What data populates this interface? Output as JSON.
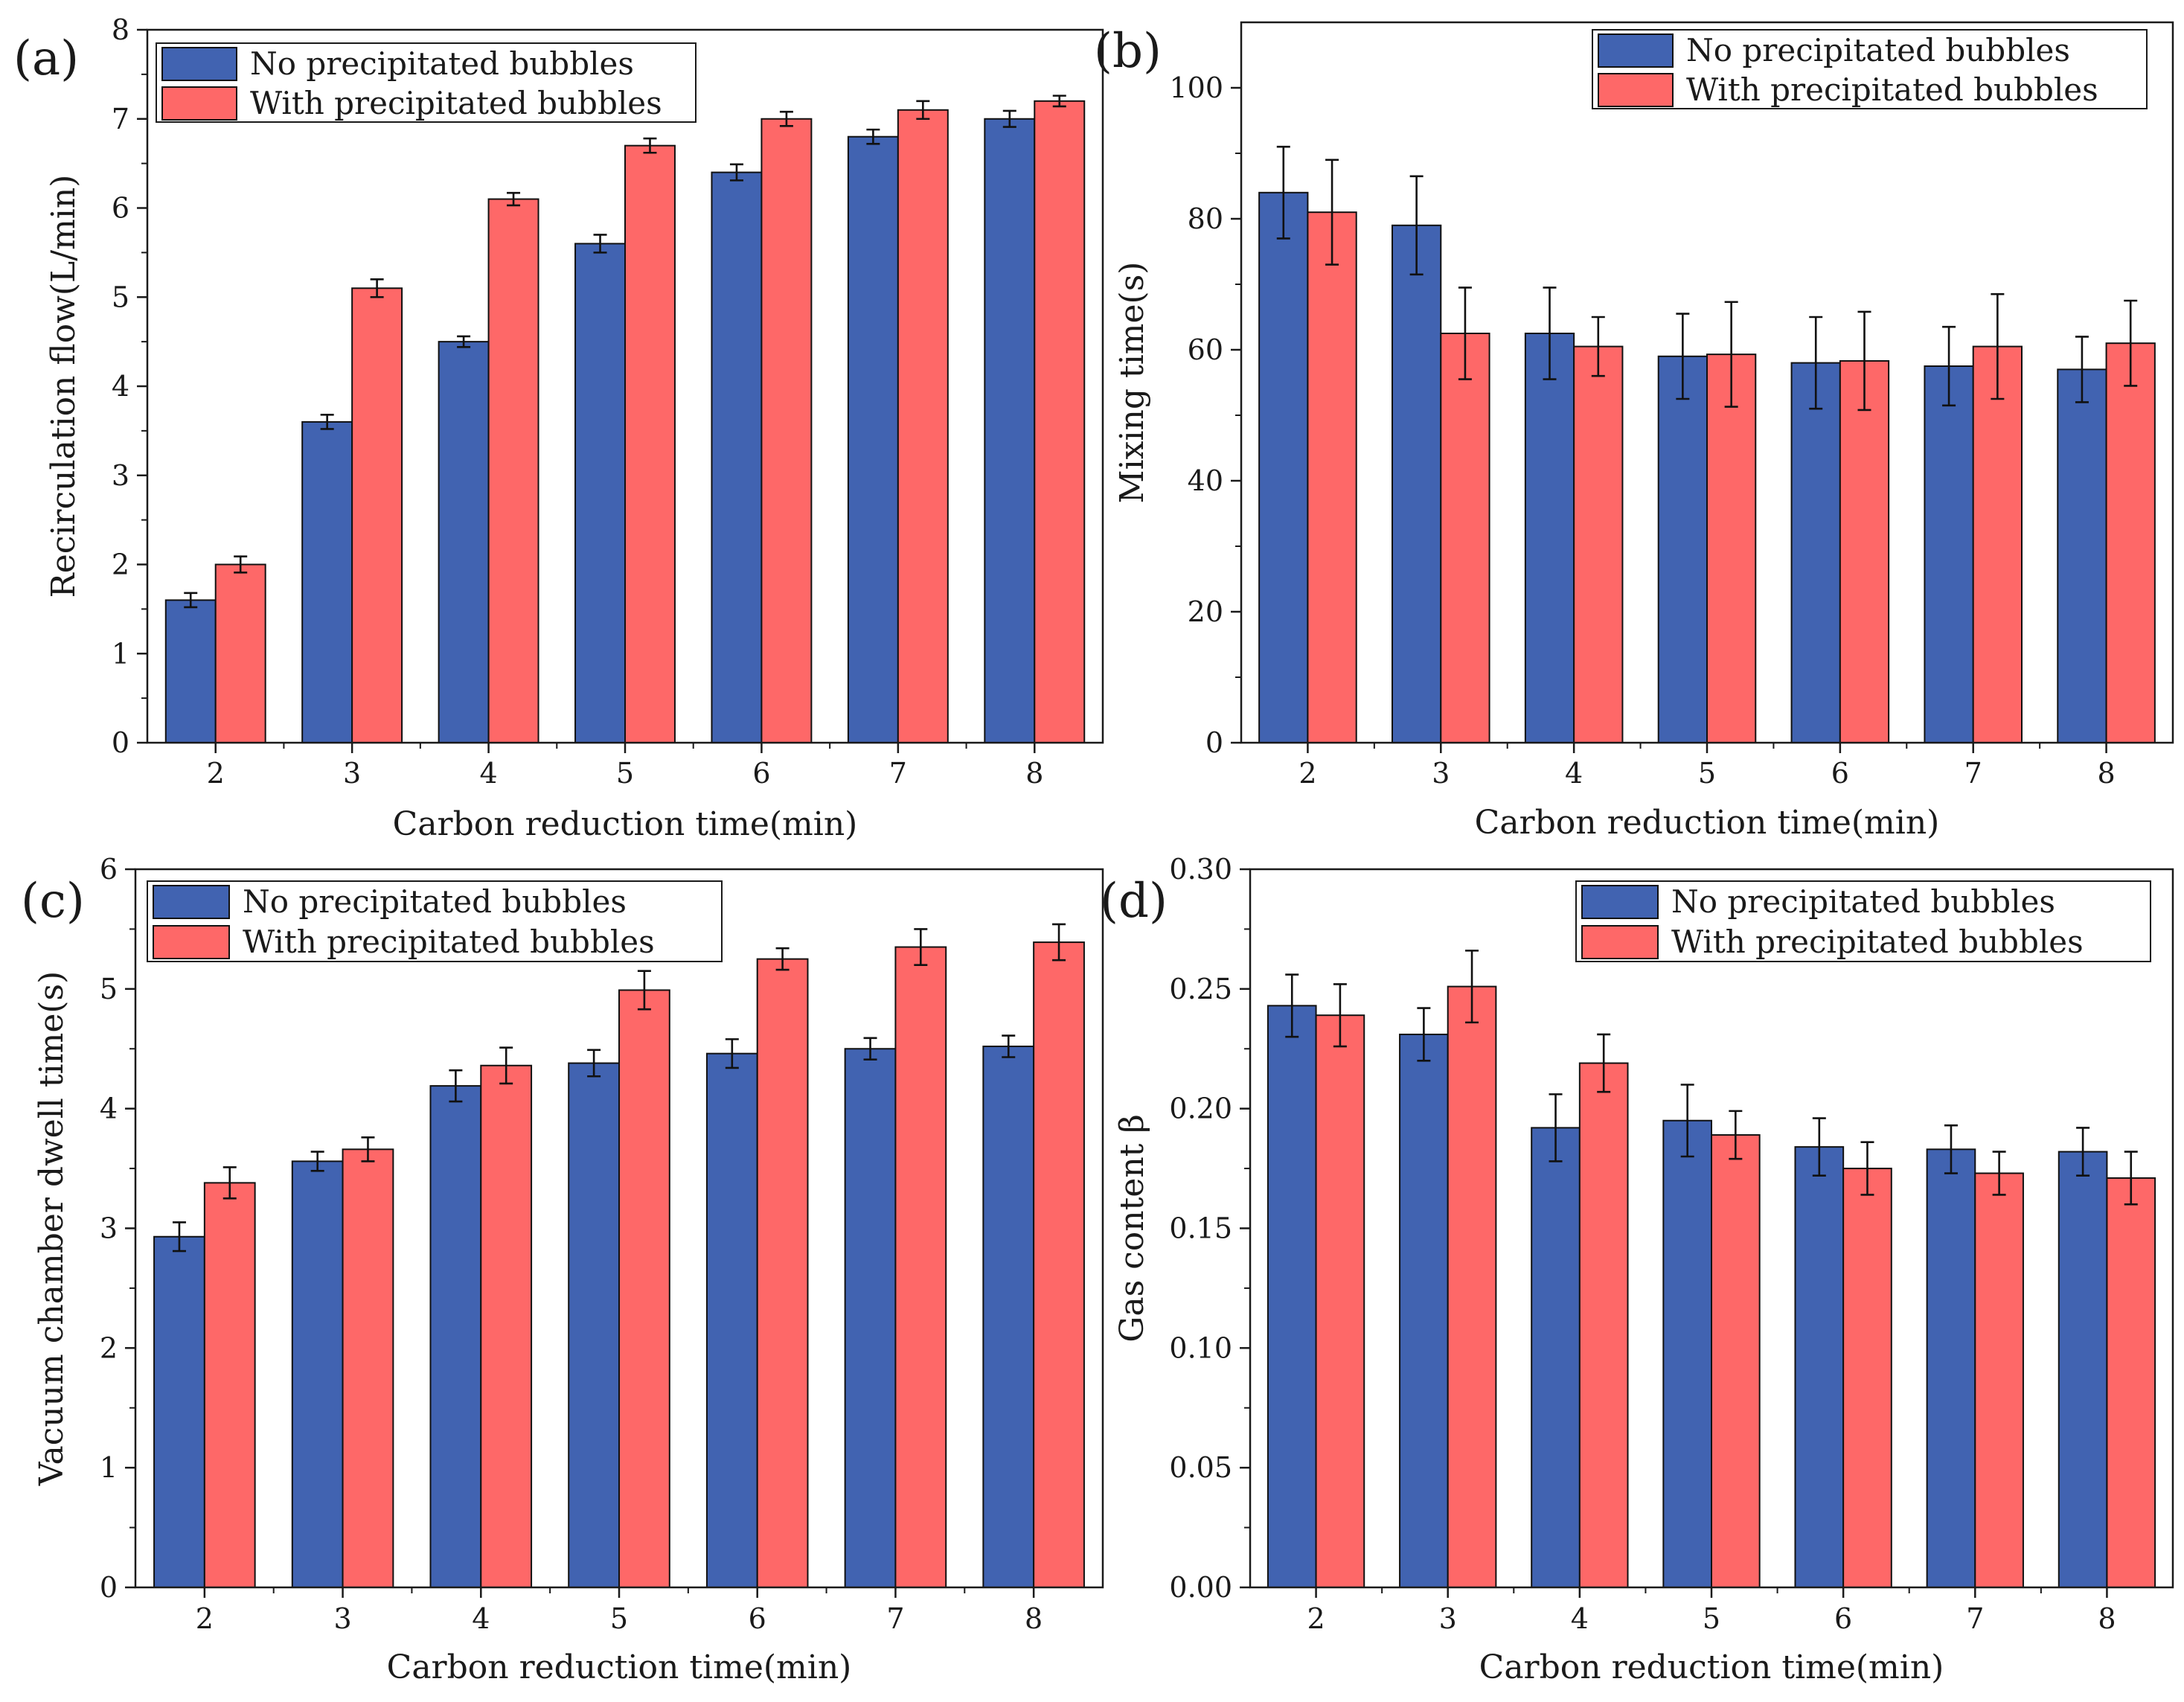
{
  "figure": {
    "colors": {
      "no_bubbles": "#4163B1",
      "with_bubbles": "#FE6868",
      "axis": "#1a1a1a",
      "error_bar": "#111111"
    }
  },
  "chart_data": [
    {
      "id": "a",
      "panel_label": "(a)",
      "type": "bar",
      "categories": [
        "2",
        "3",
        "4",
        "5",
        "6",
        "7",
        "8"
      ],
      "xlabel": "Carbon reduction time(min)",
      "ylabel": "Recirculation flow(L/min)",
      "ylim": [
        0,
        8
      ],
      "yticks": [
        "0",
        "1",
        "2",
        "3",
        "4",
        "5",
        "6",
        "7",
        "8"
      ],
      "ytick_values": [
        0,
        1,
        2,
        3,
        4,
        5,
        6,
        7,
        8
      ],
      "legend_position": "top-left",
      "series": [
        {
          "name": "No precipitated bubbles",
          "color": "#4163B1",
          "values": [
            1.6,
            3.6,
            4.5,
            5.6,
            6.4,
            6.8,
            7.0
          ],
          "errors": [
            0.08,
            0.08,
            0.06,
            0.1,
            0.09,
            0.08,
            0.09
          ]
        },
        {
          "name": "With precipitated bubbles",
          "color": "#FE6868",
          "values": [
            2.0,
            5.1,
            6.1,
            6.7,
            7.0,
            7.1,
            7.2
          ],
          "errors": [
            0.09,
            0.1,
            0.07,
            0.08,
            0.08,
            0.1,
            0.06
          ]
        }
      ]
    },
    {
      "id": "b",
      "panel_label": "(b)",
      "type": "bar",
      "categories": [
        "2",
        "3",
        "4",
        "5",
        "6",
        "7",
        "8"
      ],
      "xlabel": "Carbon reduction time(min)",
      "ylabel": "Mixing time(s)",
      "ylim": [
        0,
        110
      ],
      "yticks": [
        "0",
        "20",
        "40",
        "60",
        "80",
        "100"
      ],
      "ytick_values": [
        0,
        20,
        40,
        60,
        80,
        100
      ],
      "legend_position": "top-right",
      "series": [
        {
          "name": "No precipitated bubbles",
          "color": "#4163B1",
          "values": [
            84,
            79,
            62.5,
            59,
            58,
            57.5,
            57
          ],
          "errors": [
            7,
            7.5,
            7,
            6.5,
            7,
            6,
            5
          ]
        },
        {
          "name": "With precipitated bubbles",
          "color": "#FE6868",
          "values": [
            81,
            62.5,
            60.5,
            59.3,
            58.3,
            60.5,
            61
          ],
          "errors": [
            8,
            7,
            4.5,
            8,
            7.5,
            8,
            6.5
          ]
        }
      ]
    },
    {
      "id": "c",
      "panel_label": "(c)",
      "type": "bar",
      "categories": [
        "2",
        "3",
        "4",
        "5",
        "6",
        "7",
        "8"
      ],
      "xlabel": "Carbon reduction time(min)",
      "ylabel": "Vacuum chamber dwell time(s)",
      "ylim": [
        0,
        6
      ],
      "yticks": [
        "0",
        "1",
        "2",
        "3",
        "4",
        "5",
        "6"
      ],
      "ytick_values": [
        0,
        1,
        2,
        3,
        4,
        5,
        6
      ],
      "legend_position": "top-left",
      "series": [
        {
          "name": "No precipitated bubbles",
          "color": "#4163B1",
          "values": [
            2.93,
            3.56,
            4.19,
            4.38,
            4.46,
            4.5,
            4.52
          ],
          "errors": [
            0.12,
            0.08,
            0.13,
            0.11,
            0.12,
            0.09,
            0.09
          ]
        },
        {
          "name": "With precipitated bubbles",
          "color": "#FE6868",
          "values": [
            3.38,
            3.66,
            4.36,
            4.99,
            5.25,
            5.35,
            5.39
          ],
          "errors": [
            0.13,
            0.1,
            0.15,
            0.16,
            0.09,
            0.15,
            0.15
          ]
        }
      ]
    },
    {
      "id": "d",
      "panel_label": "(d)",
      "type": "bar",
      "categories": [
        "2",
        "3",
        "4",
        "5",
        "6",
        "7",
        "8"
      ],
      "xlabel": "Carbon reduction time(min)",
      "ylabel": "Gas content β",
      "ylim": [
        0,
        0.3
      ],
      "yticks": [
        "0.00",
        "0.05",
        "0.10",
        "0.15",
        "0.20",
        "0.25",
        "0.30"
      ],
      "ytick_values": [
        0,
        0.05,
        0.1,
        0.15,
        0.2,
        0.25,
        0.3
      ],
      "legend_position": "top-right",
      "series": [
        {
          "name": "No precipitated bubbles",
          "color": "#4163B1",
          "values": [
            0.243,
            0.231,
            0.192,
            0.195,
            0.184,
            0.183,
            0.182
          ],
          "errors": [
            0.013,
            0.011,
            0.014,
            0.015,
            0.012,
            0.01,
            0.01
          ]
        },
        {
          "name": "With precipitated bubbles",
          "color": "#FE6868",
          "values": [
            0.239,
            0.251,
            0.219,
            0.189,
            0.175,
            0.173,
            0.171
          ],
          "errors": [
            0.013,
            0.015,
            0.012,
            0.01,
            0.011,
            0.009,
            0.011
          ]
        }
      ]
    }
  ]
}
